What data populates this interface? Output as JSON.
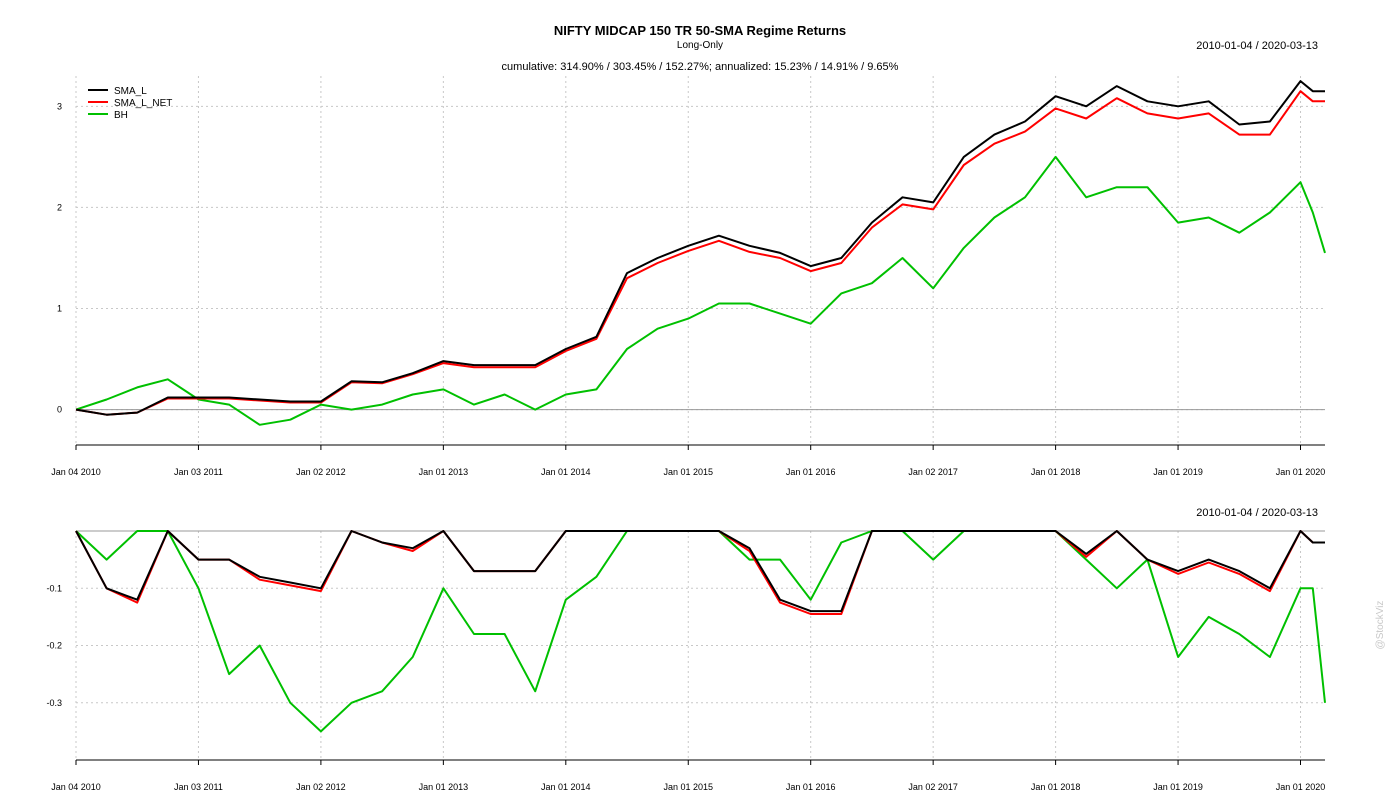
{
  "chart_data": [
    {
      "type": "line",
      "title": "NIFTY MIDCAP 150 TR 50-SMA Regime Returns",
      "subtitle": "Long-Only",
      "annotation": "cumulative: 314.90% / 303.45% / 152.27%; annualized: 15.23% / 14.91% / 9.65%",
      "date_range": "2010-01-04 / 2020-03-13",
      "xlabel": "",
      "ylabel": "",
      "x_tick_labels": [
        "Jan 04 2010",
        "Jan 03 2011",
        "Jan 02 2012",
        "Jan 01 2013",
        "Jan 01 2014",
        "Jan 01 2015",
        "Jan 01 2016",
        "Jan 02 2017",
        "Jan 01 2018",
        "Jan 01 2019",
        "Jan 01 2020"
      ],
      "y_ticks": [
        "0",
        "1",
        "2",
        "3"
      ],
      "ylim": [
        -0.35,
        3.3
      ],
      "grid": true,
      "legend_position": "top-left",
      "x": [
        2010.0,
        2010.25,
        2010.5,
        2010.75,
        2011.0,
        2011.25,
        2011.5,
        2011.75,
        2012.0,
        2012.25,
        2012.5,
        2012.75,
        2013.0,
        2013.25,
        2013.5,
        2013.75,
        2014.0,
        2014.25,
        2014.5,
        2014.75,
        2015.0,
        2015.25,
        2015.5,
        2015.75,
        2016.0,
        2016.25,
        2016.5,
        2016.75,
        2017.0,
        2017.25,
        2017.5,
        2017.75,
        2018.0,
        2018.25,
        2018.5,
        2018.75,
        2019.0,
        2019.25,
        2019.5,
        2019.75,
        2020.0,
        2020.1,
        2020.2
      ],
      "series": [
        {
          "name": "SMA_L",
          "color": "#000000",
          "values": [
            0.0,
            -0.05,
            -0.03,
            0.12,
            0.12,
            0.12,
            0.1,
            0.08,
            0.08,
            0.28,
            0.27,
            0.36,
            0.48,
            0.44,
            0.44,
            0.44,
            0.6,
            0.72,
            1.35,
            1.5,
            1.62,
            1.72,
            1.62,
            1.55,
            1.42,
            1.5,
            1.85,
            2.1,
            2.05,
            2.5,
            2.72,
            2.85,
            3.1,
            3.0,
            3.2,
            3.05,
            3.0,
            3.05,
            2.82,
            2.85,
            3.25,
            3.15,
            3.15
          ]
        },
        {
          "name": "SMA_L_NET",
          "color": "#ff0000",
          "values": [
            0.0,
            -0.05,
            -0.03,
            0.11,
            0.11,
            0.11,
            0.09,
            0.07,
            0.07,
            0.27,
            0.26,
            0.35,
            0.46,
            0.42,
            0.42,
            0.42,
            0.58,
            0.7,
            1.3,
            1.45,
            1.57,
            1.67,
            1.56,
            1.5,
            1.37,
            1.45,
            1.8,
            2.03,
            1.98,
            2.42,
            2.63,
            2.75,
            2.98,
            2.88,
            3.08,
            2.93,
            2.88,
            2.93,
            2.72,
            2.72,
            3.15,
            3.05,
            3.05
          ]
        },
        {
          "name": "BH",
          "color": "#00c000",
          "values": [
            0.0,
            0.1,
            0.22,
            0.3,
            0.1,
            0.05,
            -0.15,
            -0.1,
            0.05,
            0.0,
            0.05,
            0.15,
            0.2,
            0.05,
            0.15,
            0.0,
            0.15,
            0.2,
            0.6,
            0.8,
            0.9,
            1.05,
            1.05,
            0.95,
            0.85,
            1.15,
            1.25,
            1.5,
            1.2,
            1.6,
            1.9,
            2.1,
            2.5,
            2.1,
            2.2,
            2.2,
            1.85,
            1.9,
            1.75,
            1.95,
            2.25,
            1.95,
            1.55
          ]
        }
      ]
    },
    {
      "type": "line",
      "title": "",
      "date_range": "2010-01-04 / 2020-03-13",
      "x_tick_labels": [
        "Jan 04 2010",
        "Jan 03 2011",
        "Jan 02 2012",
        "Jan 01 2013",
        "Jan 01 2014",
        "Jan 01 2015",
        "Jan 01 2016",
        "Jan 02 2017",
        "Jan 01 2018",
        "Jan 01 2019",
        "Jan 01 2020"
      ],
      "y_ticks": [
        "-0.1",
        "-0.2",
        "-0.3"
      ],
      "ylim": [
        -0.4,
        0.0
      ],
      "grid": true,
      "x": [
        2010.0,
        2010.25,
        2010.5,
        2010.75,
        2011.0,
        2011.25,
        2011.5,
        2011.75,
        2012.0,
        2012.25,
        2012.5,
        2012.75,
        2013.0,
        2013.25,
        2013.5,
        2013.75,
        2014.0,
        2014.25,
        2014.5,
        2014.75,
        2015.0,
        2015.25,
        2015.5,
        2015.75,
        2016.0,
        2016.25,
        2016.5,
        2016.75,
        2017.0,
        2017.25,
        2017.5,
        2017.75,
        2018.0,
        2018.25,
        2018.5,
        2018.75,
        2019.0,
        2019.25,
        2019.5,
        2019.75,
        2020.0,
        2020.1,
        2020.2
      ],
      "series": [
        {
          "name": "SMA_L",
          "color": "#000000",
          "values": [
            0.0,
            -0.1,
            -0.12,
            0.0,
            -0.05,
            -0.05,
            -0.08,
            -0.09,
            -0.1,
            0.0,
            -0.02,
            -0.03,
            0.0,
            -0.07,
            -0.07,
            -0.07,
            0.0,
            0.0,
            0.0,
            0.0,
            0.0,
            0.0,
            -0.03,
            -0.12,
            -0.14,
            -0.14,
            0.0,
            0.0,
            0.0,
            0.0,
            0.0,
            0.0,
            0.0,
            -0.04,
            0.0,
            -0.05,
            -0.07,
            -0.05,
            -0.07,
            -0.1,
            0.0,
            -0.02,
            -0.02
          ]
        },
        {
          "name": "SMA_L_NET",
          "color": "#ff0000",
          "values": [
            0.0,
            -0.1,
            -0.125,
            0.0,
            -0.05,
            -0.05,
            -0.085,
            -0.095,
            -0.105,
            0.0,
            -0.02,
            -0.035,
            0.0,
            -0.07,
            -0.07,
            -0.07,
            0.0,
            0.0,
            0.0,
            0.0,
            0.0,
            0.0,
            -0.035,
            -0.125,
            -0.145,
            -0.145,
            0.0,
            0.0,
            0.0,
            0.0,
            0.0,
            0.0,
            0.0,
            -0.045,
            0.0,
            -0.05,
            -0.075,
            -0.055,
            -0.075,
            -0.105,
            0.0,
            -0.02,
            -0.02
          ]
        },
        {
          "name": "BH",
          "color": "#00c000",
          "values": [
            0.0,
            -0.05,
            0.0,
            0.0,
            -0.1,
            -0.25,
            -0.2,
            -0.3,
            -0.35,
            -0.3,
            -0.28,
            -0.22,
            -0.1,
            -0.18,
            -0.18,
            -0.28,
            -0.12,
            -0.08,
            0.0,
            0.0,
            0.0,
            0.0,
            -0.05,
            -0.05,
            -0.12,
            -0.02,
            0.0,
            0.0,
            -0.05,
            0.0,
            0.0,
            0.0,
            0.0,
            -0.05,
            -0.1,
            -0.05,
            -0.22,
            -0.15,
            -0.18,
            -0.22,
            -0.1,
            -0.1,
            -0.3
          ]
        }
      ]
    }
  ],
  "watermark": "@StockViz"
}
